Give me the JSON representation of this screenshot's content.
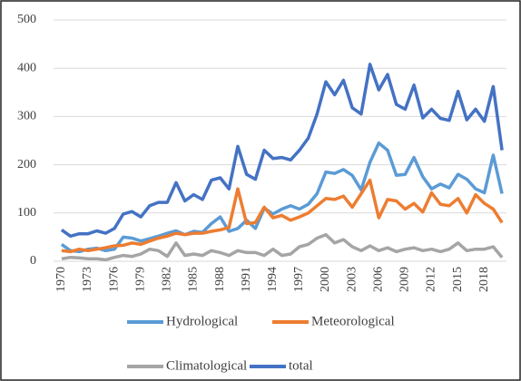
{
  "chart_data": {
    "type": "line",
    "categories": [
      "1970",
      null,
      null,
      "1973",
      null,
      null,
      "1976",
      null,
      null,
      "1979",
      null,
      null,
      "1982",
      null,
      null,
      "1985",
      null,
      null,
      "1988",
      null,
      null,
      "1991",
      null,
      null,
      "1994",
      null,
      null,
      "1997",
      null,
      null,
      "2000",
      null,
      null,
      "2003",
      null,
      null,
      "2006",
      null,
      null,
      "2009",
      null,
      null,
      "2012",
      null,
      null,
      "2015",
      null,
      null,
      "2018",
      null,
      null
    ],
    "series": [
      {
        "name": "Hydrological",
        "color": "#5b9bd5",
        "values": [
          35,
          22,
          20,
          25,
          27,
          22,
          25,
          50,
          48,
          42,
          47,
          52,
          58,
          63,
          55,
          62,
          60,
          78,
          92,
          62,
          68,
          85,
          68,
          110,
          98,
          108,
          115,
          108,
          118,
          140,
          185,
          182,
          190,
          178,
          148,
          205,
          245,
          230,
          178,
          180,
          215,
          175,
          150,
          160,
          152,
          180,
          170,
          150,
          142,
          220,
          140
        ]
      },
      {
        "name": "Meteorological",
        "color": "#ed7d31",
        "values": [
          22,
          20,
          25,
          22,
          25,
          28,
          32,
          33,
          38,
          35,
          42,
          48,
          52,
          58,
          55,
          58,
          58,
          62,
          65,
          70,
          150,
          78,
          80,
          112,
          90,
          95,
          85,
          92,
          100,
          115,
          130,
          128,
          135,
          112,
          140,
          168,
          90,
          128,
          125,
          108,
          120,
          102,
          142,
          118,
          115,
          130,
          100,
          138,
          120,
          108,
          80
        ]
      },
      {
        "name": "Climatological",
        "color": "#a5a5a5",
        "values": [
          5,
          8,
          7,
          5,
          5,
          3,
          8,
          12,
          10,
          15,
          25,
          22,
          10,
          38,
          12,
          15,
          12,
          22,
          18,
          12,
          22,
          18,
          18,
          12,
          25,
          12,
          15,
          30,
          35,
          48,
          55,
          38,
          45,
          30,
          22,
          32,
          22,
          28,
          20,
          25,
          28,
          22,
          25,
          20,
          25,
          38,
          22,
          25,
          25,
          30,
          8
        ]
      },
      {
        "name": "total",
        "color": "#4472c4",
        "values": [
          65,
          52,
          57,
          57,
          63,
          58,
          68,
          98,
          103,
          92,
          115,
          122,
          122,
          163,
          125,
          138,
          128,
          168,
          173,
          150,
          238,
          180,
          170,
          230,
          213,
          215,
          210,
          230,
          255,
          305,
          372,
          345,
          375,
          318,
          305,
          408,
          355,
          387,
          325,
          315,
          365,
          297,
          315,
          296,
          292,
          352,
          293,
          315,
          290,
          362,
          230
        ]
      }
    ],
    "ylim": [
      0,
      500
    ],
    "yticks": [
      0,
      100,
      200,
      300,
      400,
      500
    ],
    "grid": true,
    "legend": "bottom"
  }
}
